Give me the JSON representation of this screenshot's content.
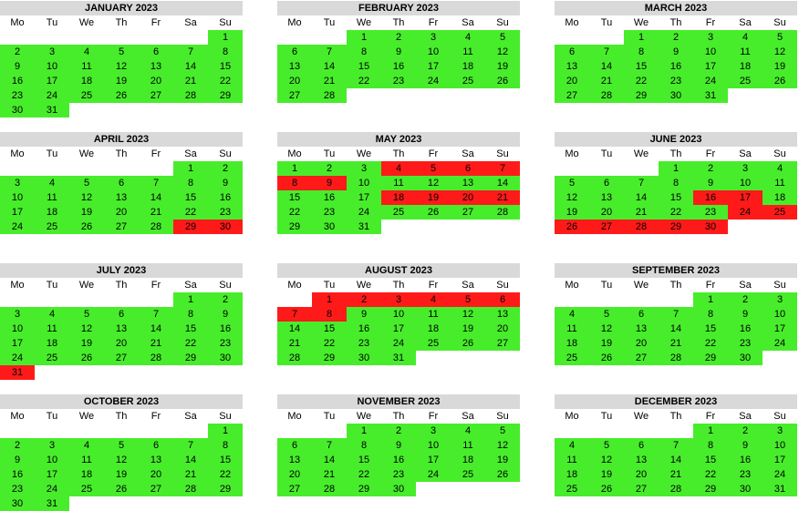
{
  "colors": {
    "available": "#47ed2b",
    "booked": "#ff1a1a",
    "header": "#d9d9d9"
  },
  "weekdays": [
    "Mo",
    "Tu",
    "We",
    "Th",
    "Fr",
    "Sa",
    "Su"
  ],
  "months": [
    {
      "title": "JANUARY 2023",
      "offset": 6,
      "days": 31,
      "booked": []
    },
    {
      "title": "FEBRUARY 2023",
      "offset": 2,
      "days": 28,
      "booked": []
    },
    {
      "title": "MARCH 2023",
      "offset": 2,
      "days": 31,
      "booked": []
    },
    {
      "title": "APRIL 2023",
      "offset": 5,
      "days": 30,
      "booked": [
        29,
        30
      ]
    },
    {
      "title": "MAY 2023",
      "offset": 0,
      "days": 31,
      "booked": [
        4,
        5,
        6,
        7,
        8,
        9,
        18,
        19,
        20,
        21
      ]
    },
    {
      "title": "JUNE 2023",
      "offset": 3,
      "days": 30,
      "booked": [
        16,
        17,
        24,
        25,
        26,
        27,
        28,
        29,
        30
      ]
    },
    {
      "title": "JULY 2023",
      "offset": 5,
      "days": 31,
      "booked": [
        31
      ]
    },
    {
      "title": "AUGUST 2023",
      "offset": 1,
      "days": 31,
      "booked": [
        1,
        2,
        3,
        4,
        5,
        6,
        7,
        8
      ]
    },
    {
      "title": "SEPTEMBER 2023",
      "offset": 4,
      "days": 30,
      "booked": []
    },
    {
      "title": "OCTOBER 2023",
      "offset": 6,
      "days": 31,
      "booked": []
    },
    {
      "title": "NOVEMBER 2023",
      "offset": 2,
      "days": 30,
      "booked": []
    },
    {
      "title": "DECEMBER 2023",
      "offset": 4,
      "days": 31,
      "booked": []
    }
  ]
}
